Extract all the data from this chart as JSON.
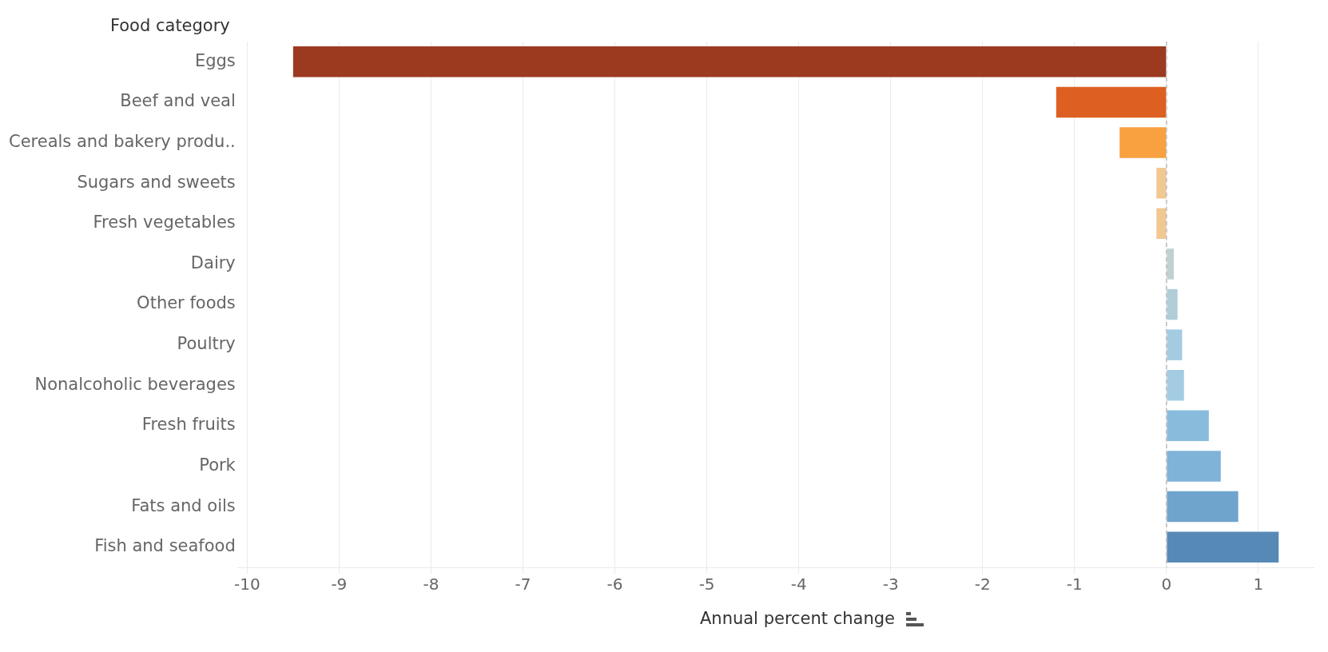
{
  "chart_data": {
    "type": "bar",
    "orientation": "horizontal",
    "ylabel": "Food category",
    "xlabel": "Annual percent change",
    "categories": [
      "Eggs",
      "Beef and veal",
      "Cereals and bakery produ..",
      "Sugars and sweets",
      "Fresh vegetables",
      "Dairy",
      "Other foods",
      "Poultry",
      "Nonalcoholic beverages",
      "Fresh fruits",
      "Pork",
      "Fats and oils",
      "Fish and seafood"
    ],
    "values": [
      -9.5,
      -1.2,
      -0.51,
      -0.11,
      -0.11,
      0.08,
      0.12,
      0.17,
      0.19,
      0.46,
      0.59,
      0.78,
      1.22
    ],
    "colors": [
      "#9c3a20",
      "#dd6022",
      "#f9a040",
      "#f1c792",
      "#f1c792",
      "#c1d1d1",
      "#b0cdd8",
      "#a3cce2",
      "#a3cce2",
      "#88bbdc",
      "#7fb3d8",
      "#6fa4cc",
      "#5789b6"
    ],
    "xlim": [
      -10.1,
      1.6
    ],
    "xticks": [
      -10,
      -9,
      -8,
      -7,
      -6,
      -5,
      -4,
      -3,
      -2,
      -1,
      0,
      1
    ],
    "ref_lines": [
      {
        "axis": "x",
        "value": 0,
        "color": "#bbbbbb",
        "line_style": "dashed"
      }
    ],
    "grid": "x",
    "legend": false
  }
}
